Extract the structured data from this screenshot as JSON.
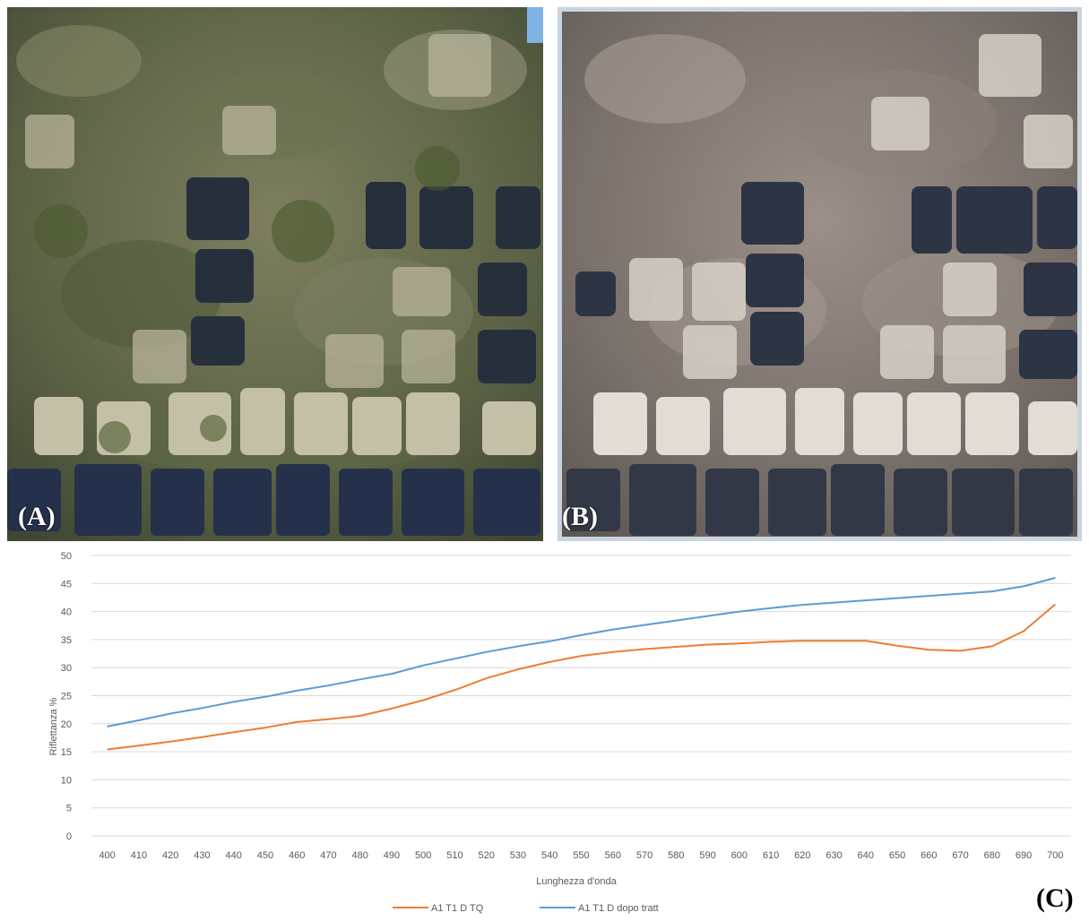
{
  "panels": {
    "a_label": "(A)",
    "b_label": "(B)",
    "c_label": "(C)",
    "a_description_hidden": null
  },
  "colors": {
    "series_tq": "#ED7D31",
    "series_dopo": "#5B9BD5",
    "gridline": "#D9D9D9",
    "tick_text": "#595959"
  },
  "chart_data": {
    "type": "line",
    "title": "",
    "xlabel": "Lunghezza d'onda",
    "ylabel": "Riflettanza %",
    "ylim": [
      0,
      50
    ],
    "yticks": [
      0,
      5,
      10,
      15,
      20,
      25,
      30,
      35,
      40,
      45,
      50
    ],
    "grid": true,
    "legend_position": "bottom",
    "x": [
      400,
      410,
      420,
      430,
      440,
      450,
      460,
      470,
      480,
      490,
      500,
      510,
      520,
      530,
      540,
      550,
      560,
      570,
      580,
      590,
      600,
      610,
      620,
      630,
      640,
      650,
      660,
      670,
      680,
      690,
      700
    ],
    "series": [
      {
        "name": "A1 T1 D TQ",
        "color": "#ED7D31",
        "values": [
          15.4,
          16.1,
          16.8,
          17.6,
          18.5,
          19.3,
          20.3,
          20.8,
          21.4,
          22.7,
          24.2,
          26.0,
          28.1,
          29.7,
          31.0,
          32.1,
          32.8,
          33.3,
          33.7,
          34.1,
          34.3,
          34.6,
          34.8,
          34.8,
          34.8,
          33.9,
          33.2,
          33.0,
          33.8,
          36.5,
          41.3
        ]
      },
      {
        "name": "A1 T1 D dopo tratt",
        "color": "#5B9BD5",
        "values": [
          19.5,
          20.6,
          21.8,
          22.8,
          23.9,
          24.8,
          25.9,
          26.8,
          27.9,
          28.9,
          30.4,
          31.6,
          32.8,
          33.8,
          34.7,
          35.8,
          36.8,
          37.6,
          38.4,
          39.2,
          40.0,
          40.6,
          41.2,
          41.6,
          42.0,
          42.4,
          42.8,
          43.2,
          43.6,
          44.5,
          46.0
        ]
      }
    ]
  }
}
